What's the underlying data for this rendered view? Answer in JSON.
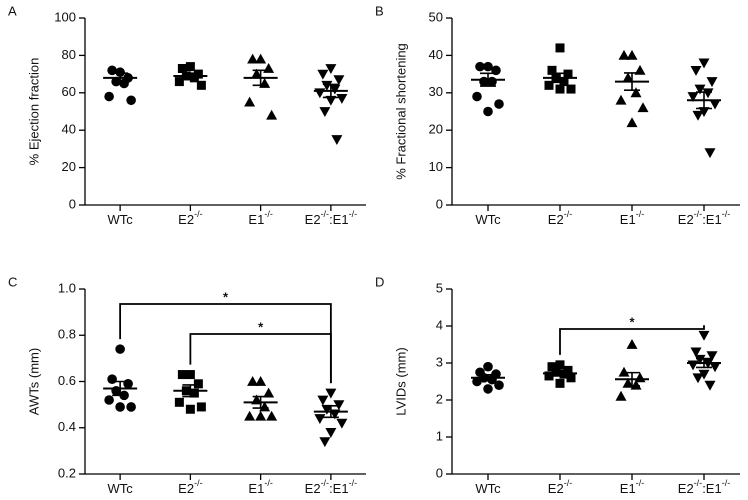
{
  "chart_data": [
    {
      "type": "dot",
      "panel_label": "A",
      "ylabel": "% Ejection fraction",
      "categories": [
        [
          {
            "text": "WTc"
          }
        ],
        [
          {
            "text": "E2"
          },
          {
            "sup": "-/-"
          }
        ],
        [
          {
            "text": "E1"
          },
          {
            "sup": "-/-"
          }
        ],
        [
          {
            "text": "E2"
          },
          {
            "sup": "-/-"
          },
          {
            "text": ":E1"
          },
          {
            "sup": "-/-"
          }
        ]
      ],
      "markers": [
        "circle",
        "square",
        "triangle",
        "triangle-down"
      ],
      "points": [
        [
          71,
          72,
          68,
          66,
          65,
          58,
          56
        ],
        [
          74,
          73,
          70,
          69,
          68,
          66,
          64
        ],
        [
          78,
          78,
          73,
          70,
          65,
          55,
          48
        ],
        [
          73,
          70,
          67,
          64,
          62,
          60,
          57,
          56,
          50,
          35
        ]
      ],
      "means": [
        68,
        69,
        68,
        61
      ],
      "sem": [
        2.5,
        1.5,
        4,
        3.5
      ],
      "ylim": [
        0,
        100
      ],
      "yticks": [
        0,
        20,
        40,
        60,
        80,
        100
      ],
      "brackets": []
    },
    {
      "type": "dot",
      "panel_label": "B",
      "ylabel": "% Fractional shortening",
      "categories": [
        [
          {
            "text": "WTc"
          }
        ],
        [
          {
            "text": "E2"
          },
          {
            "sup": "-/-"
          }
        ],
        [
          {
            "text": "E1"
          },
          {
            "sup": "-/-"
          }
        ],
        [
          {
            "text": "E2"
          },
          {
            "sup": "-/-"
          },
          {
            "text": ":E1"
          },
          {
            "sup": "-/-"
          }
        ]
      ],
      "markers": [
        "circle",
        "square",
        "triangle",
        "triangle-down"
      ],
      "points": [
        [
          37,
          37,
          36,
          33,
          33,
          29,
          27,
          25
        ],
        [
          42,
          36,
          35,
          34,
          33,
          32,
          31,
          31
        ],
        [
          40,
          40,
          36,
          34,
          30,
          28,
          26,
          22
        ],
        [
          38,
          36,
          33,
          31,
          30,
          29,
          27,
          25,
          24,
          14
        ]
      ],
      "means": [
        33.5,
        34,
        33,
        28
      ],
      "sem": [
        1.7,
        1.2,
        2.3,
        2.2
      ],
      "ylim": [
        0,
        50
      ],
      "yticks": [
        0,
        10,
        20,
        30,
        40,
        50
      ],
      "brackets": []
    },
    {
      "type": "dot",
      "panel_label": "C",
      "ylabel": "AWTs (mm)",
      "categories": [
        [
          {
            "text": "WTc"
          }
        ],
        [
          {
            "text": "E2"
          },
          {
            "sup": "-/-"
          }
        ],
        [
          {
            "text": "E1"
          },
          {
            "sup": "-/-"
          }
        ],
        [
          {
            "text": "E2"
          },
          {
            "sup": "-/-"
          },
          {
            "text": ":E1"
          },
          {
            "sup": "-/-"
          }
        ]
      ],
      "markers": [
        "circle",
        "square",
        "triangle",
        "triangle-down"
      ],
      "points": [
        [
          0.74,
          0.61,
          0.59,
          0.56,
          0.54,
          0.52,
          0.49,
          0.49
        ],
        [
          0.63,
          0.63,
          0.59,
          0.56,
          0.55,
          0.51,
          0.49,
          0.48
        ],
        [
          0.6,
          0.6,
          0.55,
          0.52,
          0.49,
          0.45,
          0.45,
          0.45
        ],
        [
          0.55,
          0.52,
          0.5,
          0.48,
          0.46,
          0.44,
          0.42,
          0.38,
          0.34
        ]
      ],
      "means": [
        0.57,
        0.56,
        0.51,
        0.47
      ],
      "sem": [
        0.03,
        0.025,
        0.025,
        0.025
      ],
      "ylim": [
        0.2,
        1.0
      ],
      "yticks": [
        0.2,
        0.4,
        0.6,
        0.8,
        {
          "value": 1.0,
          "label": "1.0"
        }
      ],
      "brackets": [
        {
          "from": 0,
          "to": 3,
          "label": "*"
        },
        {
          "from": 1,
          "to": 3,
          "label": "*"
        }
      ]
    },
    {
      "type": "dot",
      "panel_label": "D",
      "ylabel": "LVIDs (mm)",
      "categories": [
        [
          {
            "text": "WTc"
          }
        ],
        [
          {
            "text": "E2"
          },
          {
            "sup": "-/-"
          }
        ],
        [
          {
            "text": "E1"
          },
          {
            "sup": "-/-"
          }
        ],
        [
          {
            "text": "E2"
          },
          {
            "sup": "-/-"
          },
          {
            "text": ":E1"
          },
          {
            "sup": "-/-"
          }
        ]
      ],
      "markers": [
        "circle",
        "square",
        "triangle",
        "triangle-down"
      ],
      "points": [
        [
          2.9,
          2.75,
          2.7,
          2.6,
          2.55,
          2.5,
          2.4,
          2.3
        ],
        [
          2.95,
          2.9,
          2.8,
          2.75,
          2.7,
          2.65,
          2.6,
          2.45
        ],
        [
          3.5,
          2.75,
          2.6,
          2.45,
          2.4,
          2.1
        ],
        [
          3.75,
          3.3,
          3.2,
          3.1,
          3.0,
          2.95,
          2.9,
          2.7,
          2.6,
          2.4
        ]
      ],
      "means": [
        2.6,
        2.72,
        2.56,
        3.0
      ],
      "sem": [
        0.08,
        0.06,
        0.18,
        0.12
      ],
      "ylim": [
        0,
        5
      ],
      "yticks": [
        0,
        1,
        2,
        3,
        4,
        5
      ],
      "brackets": [
        {
          "from": 1,
          "to": 3,
          "label": "*"
        }
      ]
    }
  ]
}
